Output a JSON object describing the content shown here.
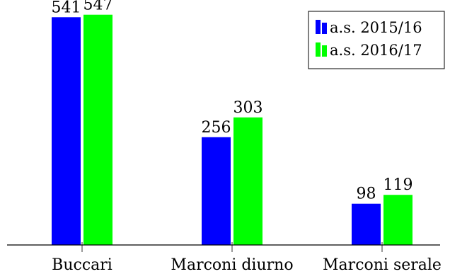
{
  "chart_data": {
    "type": "bar",
    "categories": [
      "Buccari",
      "Marconi diurno",
      "Marconi serale"
    ],
    "series": [
      {
        "name": "a.s. 2015/16",
        "color": "#0000ff",
        "values": [
          541,
          256,
          98
        ]
      },
      {
        "name": "a.s. 2016/17",
        "color": "#00ff00",
        "values": [
          547,
          303,
          119
        ]
      }
    ],
    "title": "",
    "xlabel": "",
    "ylabel": "",
    "ylim": [
      0,
      560
    ],
    "grid": false,
    "legend_position": "top-right",
    "data_labels": true
  }
}
